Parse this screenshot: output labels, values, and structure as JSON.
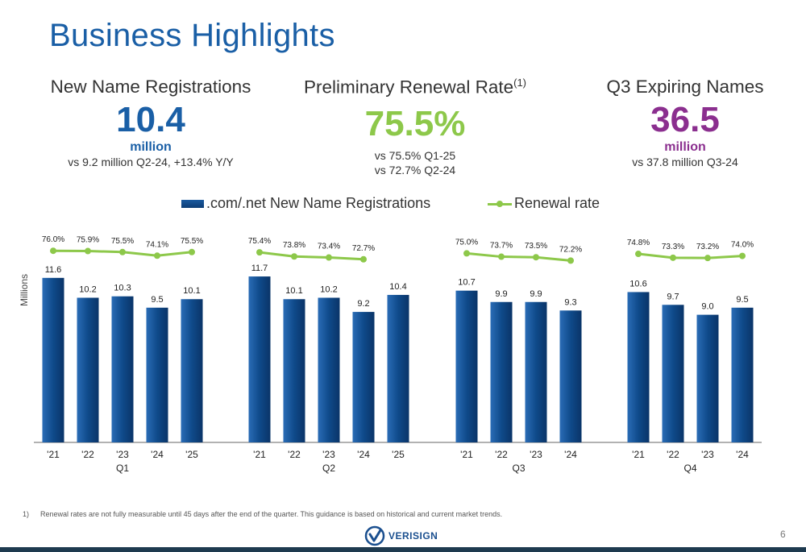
{
  "title": "Business Highlights",
  "kpis": [
    {
      "heading": "New Name Registrations",
      "sup": "",
      "value": "10.4",
      "unit": "million",
      "sub": [
        "vs 9.2 million Q2-24, +13.4% Y/Y"
      ]
    },
    {
      "heading": "Preliminary Renewal Rate",
      "sup": "(1)",
      "value": "75.5%",
      "unit": "",
      "sub": [
        "vs 75.5% Q1-25",
        "vs 72.7% Q2-24"
      ]
    },
    {
      "heading": "Q3 Expiring Names",
      "sup": "",
      "value": "36.5",
      "unit": "million",
      "sub": [
        "vs 37.8 million Q3-24"
      ]
    }
  ],
  "colors": {
    "blue": "#1a5fa6",
    "bar": "#0f4a8a",
    "green": "#8dc84a",
    "purple": "#8b2f8f"
  },
  "chart_data": {
    "type": "bar",
    "ylabel": "Millions",
    "legend": [
      ".com/.net New Name Registrations",
      "Renewal rate"
    ],
    "legend_position": "top",
    "groups": [
      {
        "label": "Q1",
        "categories": [
          "'21",
          "'22",
          "'23",
          "'24",
          "'25"
        ],
        "registrations": [
          11.6,
          10.2,
          10.3,
          9.5,
          10.1
        ],
        "registration_labels": [
          "11.6",
          "10.2",
          "10.3",
          "9.5",
          "10.1"
        ],
        "renewal": [
          76.0,
          75.9,
          75.5,
          74.1,
          75.5
        ],
        "renewal_labels": [
          "76.0%",
          "75.9%",
          "75.5%",
          "74.1%",
          "75.5%"
        ]
      },
      {
        "label": "Q2",
        "categories": [
          "'21",
          "'22",
          "'23",
          "'24",
          "'25"
        ],
        "registrations": [
          11.7,
          10.1,
          10.2,
          9.2,
          10.4
        ],
        "registration_labels": [
          "11.7",
          "10.1",
          "10.2",
          "9.2",
          "10.4"
        ],
        "renewal": [
          75.4,
          73.8,
          73.4,
          72.7
        ],
        "renewal_labels": [
          "75.4%",
          "73.8%",
          "73.4%",
          "72.7%"
        ]
      },
      {
        "label": "Q3",
        "categories": [
          "'21",
          "'22",
          "'23",
          "'24"
        ],
        "registrations": [
          10.7,
          9.9,
          9.9,
          9.3
        ],
        "registration_labels": [
          "10.7",
          "9.9",
          "9.9",
          "9.3"
        ],
        "renewal": [
          75.0,
          73.7,
          73.5,
          72.2
        ],
        "renewal_labels": [
          "75.0%",
          "73.7%",
          "73.5%",
          "72.2%"
        ]
      },
      {
        "label": "Q4",
        "categories": [
          "'21",
          "'22",
          "'23",
          "'24"
        ],
        "registrations": [
          10.6,
          9.7,
          9.0,
          9.5
        ],
        "registration_labels": [
          "10.6",
          "9.7",
          "9.0",
          "9.5"
        ],
        "renewal": [
          74.8,
          73.3,
          73.2,
          74.0
        ],
        "renewal_labels": [
          "74.8%",
          "73.3%",
          "73.2%",
          "74.0%"
        ]
      }
    ]
  },
  "footnote": {
    "number": "1)",
    "text": "Renewal rates are not fully measurable until 45 days after the end of the quarter. This guidance is based on historical and current market trends."
  },
  "logo_text": "VERISIGN",
  "page_number": "6"
}
